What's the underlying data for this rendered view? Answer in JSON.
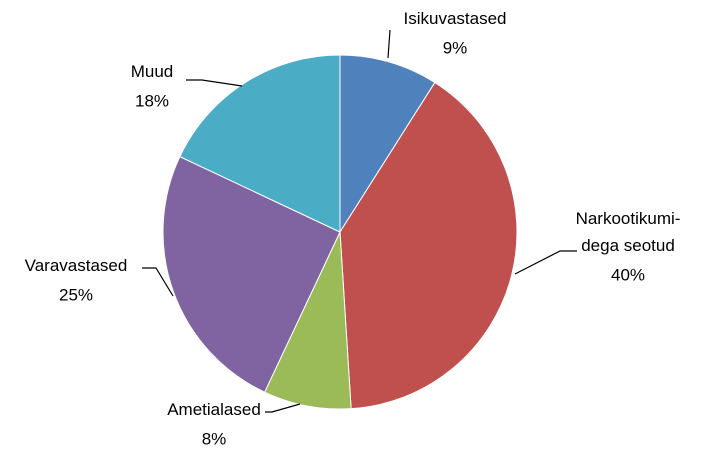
{
  "chart_data": {
    "type": "pie",
    "categories": [
      "Isikuvastased",
      "Narkootikumi-\ndega seotud",
      "Ametialased",
      "Varavastased",
      "Muud"
    ],
    "values": [
      9,
      40,
      8,
      25,
      18
    ],
    "value_labels": [
      "9%",
      "40%",
      "8%",
      "25%",
      "18%"
    ],
    "colors": [
      "#4f81bd",
      "#c0504d",
      "#9bbb59",
      "#8064a2",
      "#4bacc6"
    ]
  }
}
